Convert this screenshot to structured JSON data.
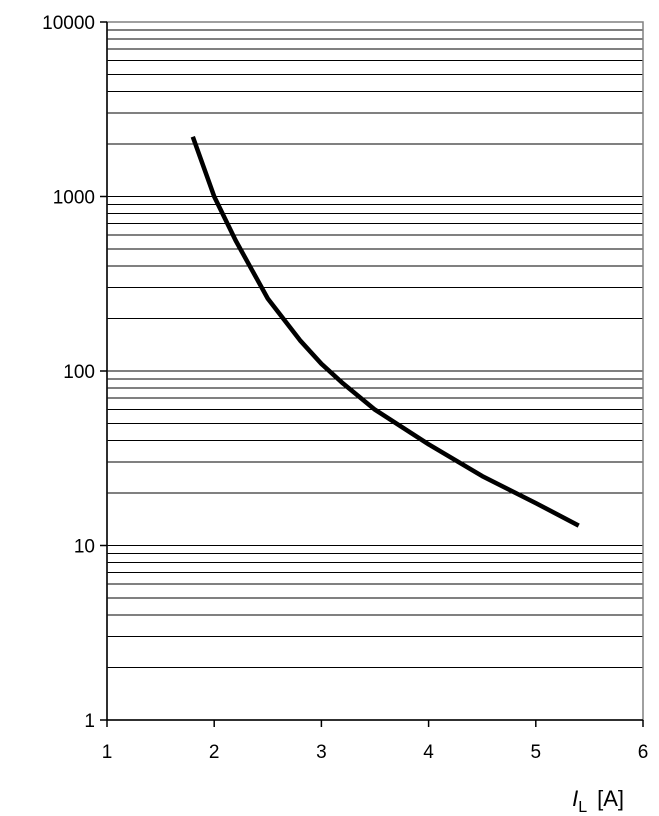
{
  "chart_data": {
    "type": "line",
    "title": "",
    "xlabel": {
      "symbol": "I",
      "subscript": "L",
      "unit": "[A]"
    },
    "ylabel": "",
    "xlim": [
      1,
      6
    ],
    "ylim": [
      1,
      10000
    ],
    "yscale": "log",
    "grid": "horizontal at log minor divisions",
    "legend": "none",
    "x_tick_labels": [
      "1",
      "2",
      "3",
      "4",
      "5",
      "6"
    ],
    "y_tick_labels": [
      "1",
      "10",
      "100",
      "1000",
      "10000"
    ],
    "series": [
      {
        "color": "#000000",
        "x": [
          1.8,
          2.0,
          2.2,
          2.5,
          2.8,
          3.0,
          3.2,
          3.5,
          4.0,
          4.5,
          5.0,
          5.4
        ],
        "y": [
          2200,
          1000,
          560,
          260,
          150,
          110,
          85,
          60,
          38,
          25,
          17.5,
          13
        ]
      }
    ]
  }
}
